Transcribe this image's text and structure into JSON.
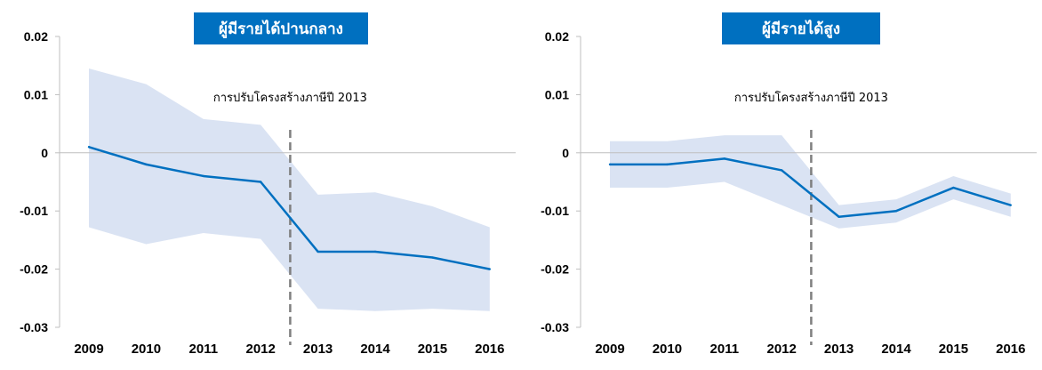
{
  "chart_data": [
    {
      "type": "line",
      "title": "ผู้มีรายได้ปานกลาง",
      "x": [
        "2009",
        "2010",
        "2011",
        "2012",
        "2013",
        "2014",
        "2015",
        "2016"
      ],
      "series": [
        {
          "values": [
            0.001,
            -0.002,
            -0.004,
            -0.005,
            -0.017,
            -0.017,
            -0.018,
            -0.02
          ]
        }
      ],
      "band": {
        "upper": [
          0.0145,
          0.0118,
          0.0058,
          0.0048,
          -0.0072,
          -0.0068,
          -0.0092,
          -0.0128
        ],
        "lower": [
          -0.0128,
          -0.0157,
          -0.0138,
          -0.0148,
          -0.0268,
          -0.0272,
          -0.0268,
          -0.0272
        ]
      },
      "yticks": [
        "0.02",
        "0.01",
        "0",
        "-0.01",
        "-0.02",
        "-0.03"
      ],
      "ylim": [
        -0.03,
        0.02
      ],
      "annotation": {
        "label": "การปรับโครงสร้างภาษีปี 2013",
        "x_between": [
          "2012",
          "2013"
        ]
      },
      "grid": false,
      "colors": {
        "line": "#0070c0",
        "band": "#dae3f3",
        "marker_line": "#7f7f7f",
        "title_bg": "#0070c0"
      }
    },
    {
      "type": "line",
      "title": "ผู้มีรายได้สูง",
      "x": [
        "2009",
        "2010",
        "2011",
        "2012",
        "2013",
        "2014",
        "2015",
        "2016"
      ],
      "series": [
        {
          "values": [
            -0.002,
            -0.002,
            -0.001,
            -0.003,
            -0.011,
            -0.01,
            -0.006,
            -0.009
          ]
        }
      ],
      "band": {
        "upper": [
          0.002,
          0.002,
          0.003,
          0.003,
          -0.009,
          -0.008,
          -0.004,
          -0.007
        ],
        "lower": [
          -0.006,
          -0.006,
          -0.005,
          -0.009,
          -0.013,
          -0.012,
          -0.008,
          -0.011
        ]
      },
      "yticks": [
        "0.02",
        "0.01",
        "0",
        "-0.01",
        "-0.02",
        "-0.03"
      ],
      "ylim": [
        -0.03,
        0.02
      ],
      "annotation": {
        "label": "การปรับโครงสร้างภาษีปี 2013",
        "x_between": [
          "2012",
          "2013"
        ]
      },
      "grid": false,
      "colors": {
        "line": "#0070c0",
        "band": "#dae3f3",
        "marker_line": "#7f7f7f",
        "title_bg": "#0070c0"
      }
    }
  ]
}
